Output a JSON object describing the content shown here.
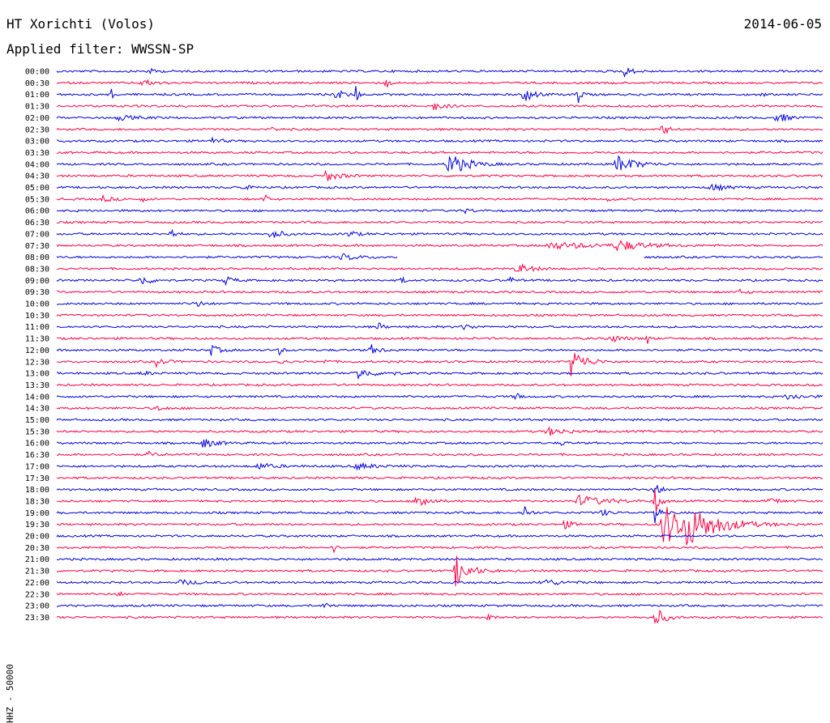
{
  "header": {
    "title": "HT Xorichti (Volos)",
    "date": "2014-06-05",
    "filter": "Applied filter: WWSSN-SP"
  },
  "colors": {
    "odd": "#0000dd",
    "even": "#ff0044"
  },
  "chart_data": {
    "type": "line",
    "title": "HT Xorichti (Volos)",
    "subtitle": "Applied filter: WWSSN-SP",
    "ylabel": "HHZ - 50000",
    "xlabel": "",
    "grid": false,
    "legend": "none",
    "traces": [
      {
        "label": "00:00",
        "color": "#0000dd",
        "events": [
          {
            "x": 0.12,
            "a": 3,
            "w": 0.01
          },
          {
            "x": 0.74,
            "a": 6,
            "w": 0.01
          }
        ]
      },
      {
        "label": "00:30",
        "color": "#ff0044",
        "events": [
          {
            "x": 0.11,
            "a": 4,
            "w": 0.015
          },
          {
            "x": 0.43,
            "a": 10,
            "w": 0.003
          }
        ]
      },
      {
        "label": "01:00",
        "color": "#0000dd",
        "events": [
          {
            "x": 0.07,
            "a": 9,
            "w": 0.003
          },
          {
            "x": 0.36,
            "a": 9,
            "w": 0.01
          },
          {
            "x": 0.39,
            "a": 12,
            "w": 0.003
          },
          {
            "x": 0.61,
            "a": 13,
            "w": 0.01
          },
          {
            "x": 0.68,
            "a": 10,
            "w": 0.005
          },
          {
            "x": 0.92,
            "a": 4,
            "w": 0.003
          }
        ]
      },
      {
        "label": "01:30",
        "color": "#ff0044",
        "events": [
          {
            "x": 0.49,
            "a": 7,
            "w": 0.01
          }
        ]
      },
      {
        "label": "02:00",
        "color": "#0000dd",
        "events": [
          {
            "x": 0.08,
            "a": 3,
            "w": 0.02
          },
          {
            "x": 0.94,
            "a": 8,
            "w": 0.01
          }
        ]
      },
      {
        "label": "02:30",
        "color": "#ff0044",
        "events": [
          {
            "x": 0.28,
            "a": 3,
            "w": 0.005
          },
          {
            "x": 0.79,
            "a": 12,
            "w": 0.005
          }
        ]
      },
      {
        "label": "03:00",
        "color": "#0000dd",
        "events": [
          {
            "x": 0.2,
            "a": 4,
            "w": 0.01
          }
        ]
      },
      {
        "label": "03:30",
        "color": "#ff0044",
        "events": []
      },
      {
        "label": "04:00",
        "color": "#0000dd",
        "events": [
          {
            "x": 0.51,
            "a": 16,
            "w": 0.02
          },
          {
            "x": 0.73,
            "a": 12,
            "w": 0.02
          }
        ]
      },
      {
        "label": "04:30",
        "color": "#ff0044",
        "events": [
          {
            "x": 0.35,
            "a": 7,
            "w": 0.015
          }
        ]
      },
      {
        "label": "05:00",
        "color": "#0000dd",
        "events": [
          {
            "x": 0.24,
            "a": 3,
            "w": 0.01
          },
          {
            "x": 0.85,
            "a": 4,
            "w": 0.02
          }
        ]
      },
      {
        "label": "05:30",
        "color": "#ff0044",
        "events": [
          {
            "x": 0.06,
            "a": 4,
            "w": 0.01
          },
          {
            "x": 0.11,
            "a": 4,
            "w": 0.005
          },
          {
            "x": 0.27,
            "a": 12,
            "w": 0.003
          },
          {
            "x": 0.72,
            "a": 4,
            "w": 0.005
          }
        ]
      },
      {
        "label": "06:00",
        "color": "#0000dd",
        "events": [
          {
            "x": 0.53,
            "a": 3,
            "w": 0.01
          }
        ]
      },
      {
        "label": "06:30",
        "color": "#ff0044",
        "events": []
      },
      {
        "label": "07:00",
        "color": "#0000dd",
        "events": [
          {
            "x": 0.15,
            "a": 7,
            "w": 0.005
          },
          {
            "x": 0.28,
            "a": 8,
            "w": 0.01
          },
          {
            "x": 0.38,
            "a": 4,
            "w": 0.01
          }
        ]
      },
      {
        "label": "07:30",
        "color": "#ff0044",
        "events": [
          {
            "x": 0.64,
            "a": 4,
            "w": 0.06
          },
          {
            "x": 0.73,
            "a": 7,
            "w": 0.025
          }
        ]
      },
      {
        "label": "08:00",
        "color": "#0000dd",
        "gap": [
          0.445,
          0.765
        ],
        "events": [
          {
            "x": 0.37,
            "a": 4,
            "w": 0.02
          }
        ]
      },
      {
        "label": "08:30",
        "color": "#ff0044",
        "events": [
          {
            "x": 0.6,
            "a": 7,
            "w": 0.015
          }
        ]
      },
      {
        "label": "09:00",
        "color": "#0000dd",
        "events": [
          {
            "x": 0.11,
            "a": 7,
            "w": 0.01
          },
          {
            "x": 0.22,
            "a": 5,
            "w": 0.01
          },
          {
            "x": 0.45,
            "a": 5,
            "w": 0.003
          },
          {
            "x": 0.59,
            "a": 5,
            "w": 0.005
          }
        ]
      },
      {
        "label": "09:30",
        "color": "#ff0044",
        "events": [
          {
            "x": 0.89,
            "a": 3,
            "w": 0.01
          }
        ]
      },
      {
        "label": "10:00",
        "color": "#0000dd",
        "events": [
          {
            "x": 0.18,
            "a": 4,
            "w": 0.01
          }
        ]
      },
      {
        "label": "10:30",
        "color": "#ff0044",
        "events": []
      },
      {
        "label": "11:00",
        "color": "#0000dd",
        "events": [
          {
            "x": 0.42,
            "a": 5,
            "w": 0.005
          },
          {
            "x": 0.53,
            "a": 4,
            "w": 0.01
          }
        ]
      },
      {
        "label": "11:30",
        "color": "#ff0044",
        "events": [
          {
            "x": 0.72,
            "a": 5,
            "w": 0.015
          },
          {
            "x": 0.77,
            "a": 7,
            "w": 0.003
          }
        ]
      },
      {
        "label": "12:00",
        "color": "#0000dd",
        "events": [
          {
            "x": 0.2,
            "a": 7,
            "w": 0.01
          },
          {
            "x": 0.29,
            "a": 5,
            "w": 0.005
          },
          {
            "x": 0.41,
            "a": 6,
            "w": 0.01
          }
        ]
      },
      {
        "label": "12:30",
        "color": "#ff0044",
        "events": [
          {
            "x": 0.13,
            "a": 5,
            "w": 0.01
          },
          {
            "x": 0.29,
            "a": 6,
            "w": 0.005
          },
          {
            "x": 0.35,
            "a": 3,
            "w": 0.005
          },
          {
            "x": 0.67,
            "a": 18,
            "w": 0.015
          }
        ]
      },
      {
        "label": "13:00",
        "color": "#0000dd",
        "events": [
          {
            "x": 0.39,
            "a": 8,
            "w": 0.015
          },
          {
            "x": 0.11,
            "a": 3,
            "w": 0.01
          },
          {
            "x": 0.43,
            "a": 3,
            "w": 0.01
          }
        ]
      },
      {
        "label": "13:30",
        "color": "#ff0044",
        "events": []
      },
      {
        "label": "14:00",
        "color": "#0000dd",
        "events": [
          {
            "x": 0.6,
            "a": 10,
            "w": 0.003
          },
          {
            "x": 0.95,
            "a": 4,
            "w": 0.02
          }
        ]
      },
      {
        "label": "14:30",
        "color": "#ff0044",
        "events": [
          {
            "x": 0.13,
            "a": 3,
            "w": 0.01
          }
        ]
      },
      {
        "label": "15:00",
        "color": "#0000dd",
        "events": []
      },
      {
        "label": "15:30",
        "color": "#ff0044",
        "events": [
          {
            "x": 0.64,
            "a": 5,
            "w": 0.02
          }
        ]
      },
      {
        "label": "16:00",
        "color": "#0000dd",
        "events": [
          {
            "x": 0.19,
            "a": 6,
            "w": 0.015
          },
          {
            "x": 0.66,
            "a": 6,
            "w": 0.003
          }
        ]
      },
      {
        "label": "16:30",
        "color": "#ff0044",
        "events": [
          {
            "x": 0.12,
            "a": 3,
            "w": 0.01
          }
        ]
      },
      {
        "label": "17:00",
        "color": "#0000dd",
        "events": [
          {
            "x": 0.26,
            "a": 4,
            "w": 0.02
          },
          {
            "x": 0.39,
            "a": 4,
            "w": 0.02
          }
        ]
      },
      {
        "label": "17:30",
        "color": "#ff0044",
        "events": []
      },
      {
        "label": "18:00",
        "color": "#0000dd",
        "events": [
          {
            "x": 0.78,
            "a": 16,
            "w": 0.005
          }
        ]
      },
      {
        "label": "18:30",
        "color": "#ff0044",
        "events": [
          {
            "x": 0.47,
            "a": 14,
            "w": 0.01
          },
          {
            "x": 0.68,
            "a": 7,
            "w": 0.03
          },
          {
            "x": 0.93,
            "a": 5,
            "w": 0.01
          },
          {
            "x": 0.78,
            "a": 18,
            "w": 0.005
          }
        ]
      },
      {
        "label": "19:00",
        "color": "#0000dd",
        "events": [
          {
            "x": 0.61,
            "a": 10,
            "w": 0.005
          },
          {
            "x": 0.71,
            "a": 4,
            "w": 0.01
          },
          {
            "x": 0.78,
            "a": 16,
            "w": 0.005
          }
        ]
      },
      {
        "label": "19:30",
        "color": "#ff0044",
        "events": [
          {
            "x": 0.66,
            "a": 6,
            "w": 0.01
          },
          {
            "x": 0.79,
            "a": 28,
            "w": 0.03
          },
          {
            "x": 0.82,
            "a": 18,
            "w": 0.04
          }
        ]
      },
      {
        "label": "20:00",
        "color": "#0000dd",
        "events": []
      },
      {
        "label": "20:30",
        "color": "#ff0044",
        "events": [
          {
            "x": 0.36,
            "a": 8,
            "w": 0.003
          }
        ]
      },
      {
        "label": "21:00",
        "color": "#0000dd",
        "events": []
      },
      {
        "label": "21:30",
        "color": "#ff0044",
        "events": [
          {
            "x": 0.52,
            "a": 20,
            "w": 0.015
          }
        ]
      },
      {
        "label": "22:00",
        "color": "#0000dd",
        "events": [
          {
            "x": 0.16,
            "a": 3,
            "w": 0.02
          },
          {
            "x": 0.63,
            "a": 5,
            "w": 0.02
          }
        ]
      },
      {
        "label": "22:30",
        "color": "#ff0044",
        "events": [
          {
            "x": 0.08,
            "a": 6,
            "w": 0.003
          }
        ]
      },
      {
        "label": "23:00",
        "color": "#0000dd",
        "events": [
          {
            "x": 0.35,
            "a": 5,
            "w": 0.005
          }
        ]
      },
      {
        "label": "23:30",
        "color": "#ff0044",
        "events": [
          {
            "x": 0.56,
            "a": 8,
            "w": 0.005
          },
          {
            "x": 0.78,
            "a": 14,
            "w": 0.01
          }
        ]
      }
    ]
  }
}
